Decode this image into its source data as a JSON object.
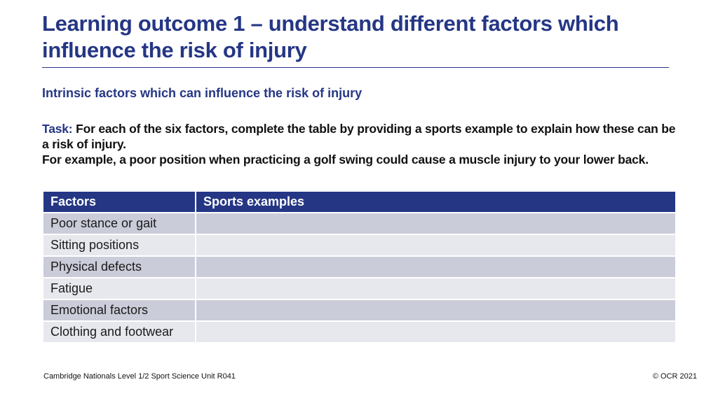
{
  "slide": {
    "title": "Learning outcome 1 – understand different factors which influence the risk of injury",
    "subtitle": "Intrinsic factors which can influence the risk of injury",
    "task": {
      "label": "Task:",
      "text": "For each of the six factors, complete the table by providing a sports example to explain how these can be a risk of injury.",
      "example": "For example, a poor position when practicing a golf swing could cause a muscle injury to your lower back."
    },
    "table": {
      "headers": [
        "Factors",
        "Sports examples"
      ],
      "rows": [
        {
          "factor": "Poor stance or gait",
          "example": ""
        },
        {
          "factor": "Sitting positions",
          "example": ""
        },
        {
          "factor": "Physical defects",
          "example": ""
        },
        {
          "factor": "Fatigue",
          "example": ""
        },
        {
          "factor": "Emotional factors",
          "example": ""
        },
        {
          "factor": "Clothing and footwear",
          "example": ""
        }
      ]
    },
    "footer": {
      "left": "Cambridge Nationals Level 1/2 Sport Science Unit R041",
      "right": "© OCR 2021"
    },
    "colors": {
      "accent": "#253685",
      "row_dark": "#cbccd9",
      "row_light": "#e7e8ed"
    }
  }
}
